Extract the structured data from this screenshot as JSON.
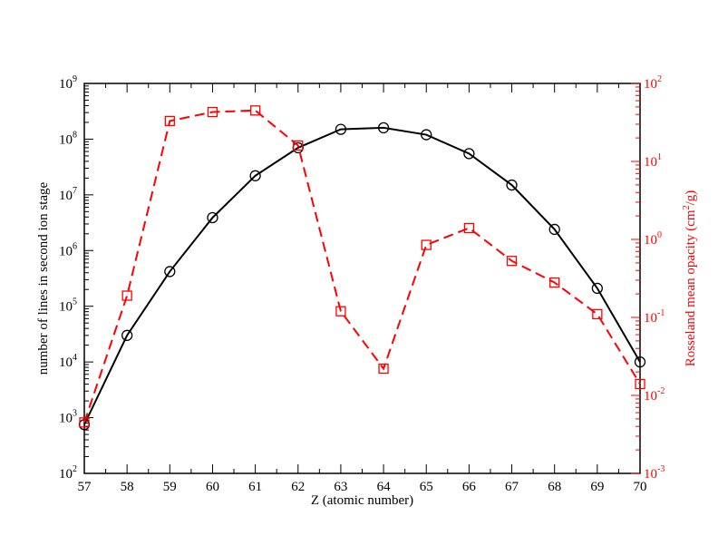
{
  "chart_data": {
    "type": "line",
    "xlabel": "Z (atomic number)",
    "xlim": [
      57,
      70
    ],
    "x_ticks": [
      "57",
      "58",
      "59",
      "60",
      "61",
      "62",
      "63",
      "64",
      "65",
      "66",
      "67",
      "68",
      "69",
      "70"
    ],
    "left_axis": {
      "label": "number of lines in second ion stage",
      "scale": "log",
      "ylim": [
        100,
        1000000000
      ],
      "tick_mantissa": "10",
      "tick_exponents": [
        "2",
        "3",
        "4",
        "5",
        "6",
        "7",
        "8",
        "9"
      ],
      "color": "#000000"
    },
    "right_axis": {
      "label_main": "Rosseland mean opacity (cm",
      "label_sup": "2",
      "label_end": "/g)",
      "scale": "log",
      "ylim": [
        0.001,
        100
      ],
      "tick_mantissa": "10",
      "tick_exponents": [
        "-3",
        "-2",
        "-1",
        "0",
        "1",
        "2"
      ],
      "color": "#ff0000"
    },
    "series": [
      {
        "axis": "left",
        "marker": "circle",
        "line": "solid",
        "color": "#000000",
        "x": [
          57,
          58,
          59,
          60,
          61,
          62,
          63,
          64,
          65,
          66,
          67,
          68,
          69,
          70
        ],
        "values": [
          750,
          30000,
          420000,
          3900000,
          22000000,
          70000000,
          150000000,
          160000000,
          120000000,
          55000000,
          15000000,
          2400000,
          210000,
          10000
        ]
      },
      {
        "axis": "right",
        "marker": "square",
        "line": "dashed",
        "color": "#ff0000",
        "x": [
          57,
          58,
          59,
          60,
          61,
          62,
          63,
          64,
          65,
          66,
          67,
          68,
          69,
          70
        ],
        "values": [
          0.0045,
          0.19,
          33,
          43,
          45,
          16,
          0.12,
          0.022,
          0.85,
          1.4,
          0.53,
          0.28,
          0.11,
          0.014
        ]
      }
    ],
    "grid": false,
    "legend": "none"
  }
}
